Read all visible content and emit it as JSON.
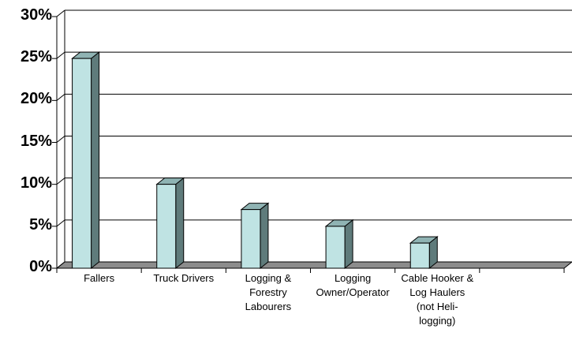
{
  "chart_data": {
    "type": "bar3d",
    "categories": [
      "Fallers",
      "Truck Drivers",
      "Logging &\nForestry\nLabourers",
      "Logging\nOwner/Operator",
      "Cable Hooker &\nLog Haulers\n(not Heli-\nlogging)",
      null
    ],
    "values": [
      25,
      10,
      7,
      5,
      3,
      null
    ],
    "color": "#bfe3e3",
    "ylim": [
      0,
      30
    ],
    "yticks": [
      {
        "value": 0,
        "label": "0%"
      },
      {
        "value": 5,
        "label": "5%"
      },
      {
        "value": 10,
        "label": "10%"
      },
      {
        "value": 15,
        "label": "15%"
      },
      {
        "value": 20,
        "label": "20%"
      },
      {
        "value": 25,
        "label": "25%"
      },
      {
        "value": 30,
        "label": "30%"
      }
    ],
    "grid": true
  }
}
